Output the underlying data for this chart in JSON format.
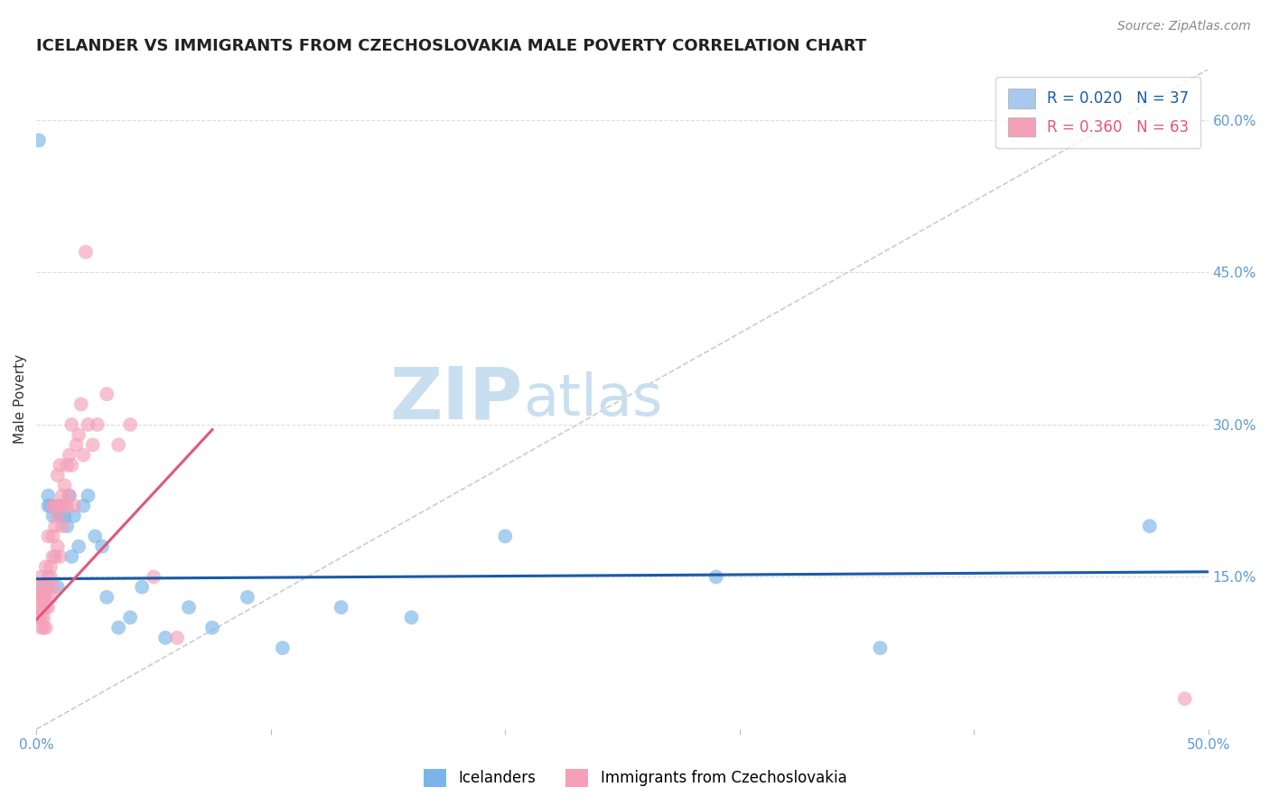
{
  "title": "ICELANDER VS IMMIGRANTS FROM CZECHOSLOVAKIA MALE POVERTY CORRELATION CHART",
  "source": "Source: ZipAtlas.com",
  "ylabel": "Male Poverty",
  "xlim": [
    0.0,
    0.5
  ],
  "ylim": [
    0.0,
    0.65
  ],
  "ytick_positions": [
    0.15,
    0.3,
    0.45,
    0.6
  ],
  "ytick_labels": [
    "15.0%",
    "30.0%",
    "45.0%",
    "60.0%"
  ],
  "legend_entries": [
    {
      "label": "R = 0.020   N = 37",
      "color": "#a8c8ee"
    },
    {
      "label": "R = 0.360   N = 63",
      "color": "#f4a0b8"
    }
  ],
  "icelanders": {
    "color": "#7ab4e8",
    "trend_color": "#1a5aaa",
    "trend_x": [
      0.0,
      0.5
    ],
    "trend_y": [
      0.148,
      0.155
    ],
    "x": [
      0.001,
      0.002,
      0.003,
      0.004,
      0.005,
      0.005,
      0.006,
      0.007,
      0.008,
      0.009,
      0.01,
      0.01,
      0.012,
      0.013,
      0.014,
      0.015,
      0.016,
      0.018,
      0.02,
      0.022,
      0.025,
      0.028,
      0.03,
      0.035,
      0.04,
      0.045,
      0.055,
      0.065,
      0.075,
      0.09,
      0.105,
      0.13,
      0.16,
      0.2,
      0.29,
      0.36,
      0.475
    ],
    "y": [
      0.58,
      0.14,
      0.13,
      0.14,
      0.22,
      0.23,
      0.22,
      0.21,
      0.22,
      0.14,
      0.22,
      0.21,
      0.21,
      0.2,
      0.23,
      0.17,
      0.21,
      0.18,
      0.22,
      0.23,
      0.19,
      0.18,
      0.13,
      0.1,
      0.11,
      0.14,
      0.09,
      0.12,
      0.1,
      0.13,
      0.08,
      0.12,
      0.11,
      0.19,
      0.15,
      0.08,
      0.2
    ]
  },
  "czechoslovakia": {
    "color": "#f4a0b8",
    "trend_color": "#e05878",
    "trend_x": [
      0.0,
      0.075
    ],
    "trend_y": [
      0.108,
      0.295
    ],
    "x": [
      0.001,
      0.001,
      0.001,
      0.001,
      0.002,
      0.002,
      0.002,
      0.002,
      0.002,
      0.003,
      0.003,
      0.003,
      0.003,
      0.003,
      0.004,
      0.004,
      0.004,
      0.004,
      0.005,
      0.005,
      0.005,
      0.005,
      0.006,
      0.006,
      0.006,
      0.007,
      0.007,
      0.007,
      0.007,
      0.008,
      0.008,
      0.008,
      0.009,
      0.009,
      0.009,
      0.01,
      0.01,
      0.01,
      0.011,
      0.011,
      0.012,
      0.012,
      0.013,
      0.013,
      0.014,
      0.014,
      0.015,
      0.015,
      0.016,
      0.017,
      0.018,
      0.019,
      0.02,
      0.021,
      0.022,
      0.024,
      0.026,
      0.03,
      0.035,
      0.04,
      0.05,
      0.06,
      0.49
    ],
    "y": [
      0.14,
      0.13,
      0.12,
      0.11,
      0.13,
      0.12,
      0.11,
      0.1,
      0.15,
      0.13,
      0.12,
      0.14,
      0.11,
      0.1,
      0.13,
      0.12,
      0.16,
      0.1,
      0.15,
      0.14,
      0.19,
      0.12,
      0.15,
      0.16,
      0.13,
      0.17,
      0.19,
      0.14,
      0.22,
      0.17,
      0.2,
      0.22,
      0.18,
      0.25,
      0.21,
      0.22,
      0.26,
      0.17,
      0.23,
      0.2,
      0.24,
      0.22,
      0.26,
      0.22,
      0.27,
      0.23,
      0.26,
      0.3,
      0.22,
      0.28,
      0.29,
      0.32,
      0.27,
      0.47,
      0.3,
      0.28,
      0.3,
      0.33,
      0.28,
      0.3,
      0.15,
      0.09,
      0.03
    ]
  },
  "diagonal_line": {
    "color": "#cccccc",
    "style": "--",
    "x": [
      0.0,
      0.5
    ],
    "y": [
      0.0,
      0.65
    ]
  },
  "watermark_zip": "ZIP",
  "watermark_atlas": "atlas",
  "watermark_color_zip": "#c8dff0",
  "watermark_color_atlas": "#c8dff0",
  "background_color": "#ffffff",
  "title_fontsize": 13,
  "axis_label_fontsize": 11,
  "tick_fontsize": 11,
  "tick_color": "#5b9bd5",
  "legend_fontsize": 12
}
